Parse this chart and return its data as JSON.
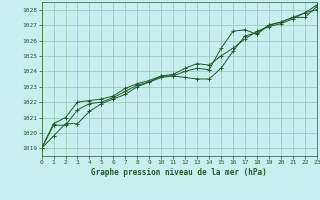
{
  "title": "Graphe pression niveau de la mer (hPa)",
  "bg_color": "#c8eef0",
  "grid_color": "#90c8b0",
  "line_color": "#1a6020",
  "xlim": [
    0,
    23
  ],
  "ylim": [
    1018.5,
    1028.5
  ],
  "yticks": [
    1019,
    1020,
    1021,
    1022,
    1023,
    1024,
    1025,
    1026,
    1027,
    1028
  ],
  "xticks": [
    0,
    1,
    2,
    3,
    4,
    5,
    6,
    7,
    8,
    9,
    10,
    11,
    12,
    13,
    14,
    15,
    16,
    17,
    18,
    19,
    20,
    21,
    22,
    23
  ],
  "series": [
    [
      1019.0,
      1019.8,
      1020.6,
      1020.6,
      1021.4,
      1021.9,
      1022.2,
      1022.5,
      1023.0,
      1023.3,
      1023.6,
      1023.7,
      1023.6,
      1023.5,
      1023.5,
      1024.2,
      1025.3,
      1026.3,
      1026.5,
      1027.0,
      1027.2,
      1027.5,
      1027.5,
      1028.2
    ],
    [
      1019.0,
      1020.5,
      1020.5,
      1021.5,
      1021.9,
      1022.0,
      1022.3,
      1022.7,
      1023.1,
      1023.3,
      1023.7,
      1023.7,
      1024.0,
      1024.2,
      1024.1,
      1025.5,
      1026.6,
      1026.7,
      1026.4,
      1027.0,
      1027.2,
      1027.5,
      1027.8,
      1028.0
    ],
    [
      1019.0,
      1020.6,
      1021.0,
      1022.0,
      1022.1,
      1022.2,
      1022.4,
      1022.9,
      1023.2,
      1023.4,
      1023.7,
      1023.8,
      1024.2,
      1024.5,
      1024.4,
      1025.0,
      1025.5,
      1026.1,
      1026.6,
      1026.9,
      1027.1,
      1027.4,
      1027.8,
      1028.3
    ]
  ]
}
